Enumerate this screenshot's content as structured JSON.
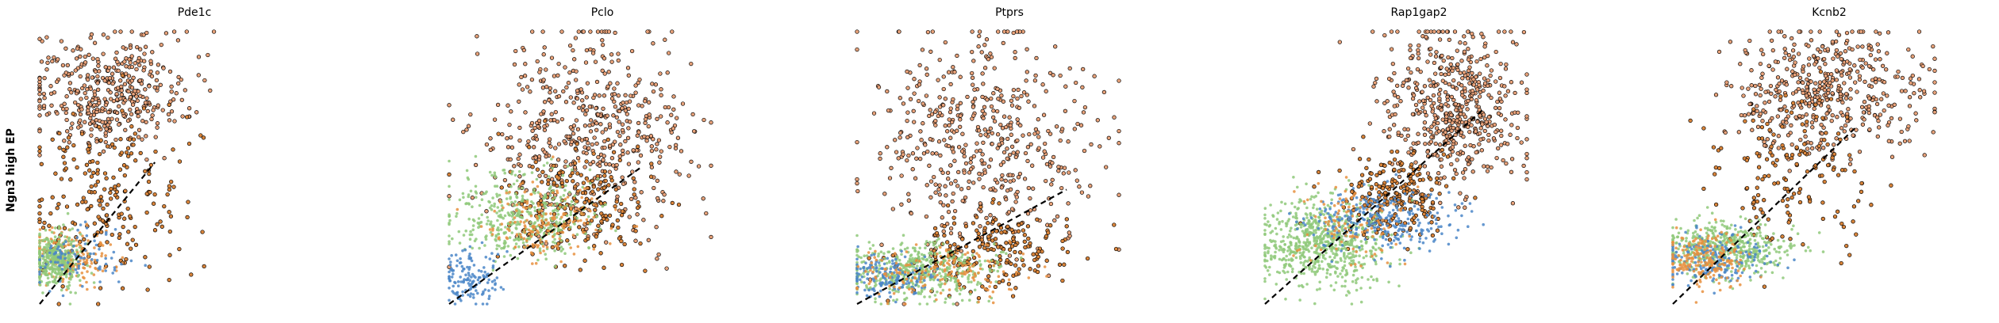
{
  "figure": {
    "row_label": "Ngn3 high EP"
  },
  "chart_data": [
    {
      "type": "scatter",
      "title": "Pde1c",
      "xlabel": "",
      "ylabel": "",
      "xlim": [
        0,
        1
      ],
      "ylim": [
        0,
        1
      ],
      "grid": false,
      "axes_visible": false,
      "fit_line": {
        "x": [
          0.0,
          0.44
        ],
        "y": [
          0.0,
          0.52
        ],
        "style": "dashed",
        "color": "#000000"
      },
      "clusters": [
        {
          "group": "high",
          "color": "#e8a27a",
          "n": 420,
          "cx": 0.26,
          "cy": 0.78,
          "sx": 0.15,
          "sy": 0.1
        },
        {
          "group": "mid",
          "color": "#d9843a",
          "n": 220,
          "cx": 0.25,
          "cy": 0.4,
          "sx": 0.15,
          "sy": 0.16
        },
        {
          "group": "low_orange",
          "color": "#e8913f",
          "n": 220,
          "cx": 0.1,
          "cy": 0.17,
          "sx": 0.08,
          "sy": 0.05
        },
        {
          "group": "low_green",
          "color": "#8fc97a",
          "n": 340,
          "cx": 0.06,
          "cy": 0.16,
          "sx": 0.05,
          "sy": 0.05
        },
        {
          "group": "low_blue",
          "color": "#4a86c8",
          "n": 90,
          "cx": 0.14,
          "cy": 0.16,
          "sx": 0.08,
          "sy": 0.05
        }
      ]
    },
    {
      "type": "scatter",
      "title": "Pclo",
      "xlabel": "",
      "ylabel": "",
      "xlim": [
        0,
        1
      ],
      "ylim": [
        0,
        1
      ],
      "grid": false,
      "axes_visible": false,
      "fit_line": {
        "x": [
          0.0,
          0.73
        ],
        "y": [
          0.0,
          0.5
        ],
        "style": "dashed",
        "color": "#000000"
      },
      "clusters": [
        {
          "group": "high",
          "color": "#e8a27a",
          "n": 520,
          "cx": 0.52,
          "cy": 0.62,
          "sx": 0.2,
          "sy": 0.18
        },
        {
          "group": "mid",
          "color": "#d9843a",
          "n": 200,
          "cx": 0.48,
          "cy": 0.36,
          "sx": 0.14,
          "sy": 0.1
        },
        {
          "group": "low_green",
          "color": "#8fc97a",
          "n": 420,
          "cx": 0.28,
          "cy": 0.32,
          "sx": 0.14,
          "sy": 0.08
        },
        {
          "group": "low_blue",
          "color": "#4a86c8",
          "n": 140,
          "cx": 0.08,
          "cy": 0.1,
          "sx": 0.06,
          "sy": 0.05
        },
        {
          "group": "low_orange",
          "color": "#e8913f",
          "n": 160,
          "cx": 0.35,
          "cy": 0.3,
          "sx": 0.12,
          "sy": 0.07
        }
      ]
    },
    {
      "type": "scatter",
      "title": "Ptprs",
      "xlabel": "",
      "ylabel": "",
      "xlim": [
        0,
        1
      ],
      "ylim": [
        0,
        1
      ],
      "grid": false,
      "axes_visible": false,
      "fit_line": {
        "x": [
          0.0,
          0.8
        ],
        "y": [
          0.0,
          0.42
        ],
        "style": "dashed",
        "color": "#000000"
      },
      "clusters": [
        {
          "group": "high",
          "color": "#e8a27a",
          "n": 520,
          "cx": 0.48,
          "cy": 0.6,
          "sx": 0.2,
          "sy": 0.2
        },
        {
          "group": "mid",
          "color": "#d9843a",
          "n": 200,
          "cx": 0.52,
          "cy": 0.2,
          "sx": 0.16,
          "sy": 0.08
        },
        {
          "group": "low_green",
          "color": "#8fc97a",
          "n": 460,
          "cx": 0.24,
          "cy": 0.12,
          "sx": 0.14,
          "sy": 0.05
        },
        {
          "group": "low_blue",
          "color": "#4a86c8",
          "n": 160,
          "cx": 0.12,
          "cy": 0.1,
          "sx": 0.08,
          "sy": 0.04
        },
        {
          "group": "low_orange",
          "color": "#e8913f",
          "n": 160,
          "cx": 0.3,
          "cy": 0.12,
          "sx": 0.16,
          "sy": 0.05
        }
      ]
    },
    {
      "type": "scatter",
      "title": "Rap1gap2",
      "xlabel": "",
      "ylabel": "",
      "xlim": [
        0,
        1
      ],
      "ylim": [
        0,
        1
      ],
      "grid": false,
      "axes_visible": false,
      "fit_line": {
        "x": [
          0.0,
          0.84
        ],
        "y": [
          0.0,
          0.72
        ],
        "style": "dashed",
        "color": "#000000"
      },
      "clusters": [
        {
          "group": "high",
          "color": "#e8a27a",
          "n": 540,
          "cx": 0.72,
          "cy": 0.72,
          "sx": 0.14,
          "sy": 0.15
        },
        {
          "group": "mid",
          "color": "#d9843a",
          "n": 220,
          "cx": 0.48,
          "cy": 0.4,
          "sx": 0.1,
          "sy": 0.08
        },
        {
          "group": "low_green",
          "color": "#8fc97a",
          "n": 700,
          "cx": 0.22,
          "cy": 0.22,
          "sx": 0.12,
          "sy": 0.08
        },
        {
          "group": "low_blue",
          "color": "#4a86c8",
          "n": 280,
          "cx": 0.44,
          "cy": 0.3,
          "sx": 0.14,
          "sy": 0.06
        },
        {
          "group": "low_orange",
          "color": "#e8913f",
          "n": 100,
          "cx": 0.3,
          "cy": 0.3,
          "sx": 0.1,
          "sy": 0.08
        }
      ]
    },
    {
      "type": "scatter",
      "title": "Kcnb2",
      "xlabel": "",
      "ylabel": "",
      "xlim": [
        0,
        1
      ],
      "ylim": [
        0,
        1
      ],
      "grid": false,
      "axes_visible": false,
      "fit_line": {
        "x": [
          0.0,
          0.7
        ],
        "y": [
          0.0,
          0.65
        ],
        "style": "dashed",
        "color": "#000000"
      },
      "clusters": [
        {
          "group": "high",
          "color": "#e8a27a",
          "n": 480,
          "cx": 0.58,
          "cy": 0.78,
          "sx": 0.17,
          "sy": 0.12
        },
        {
          "group": "mid",
          "color": "#d9843a",
          "n": 160,
          "cx": 0.45,
          "cy": 0.48,
          "sx": 0.14,
          "sy": 0.14
        },
        {
          "group": "low_green",
          "color": "#8fc97a",
          "n": 500,
          "cx": 0.2,
          "cy": 0.2,
          "sx": 0.12,
          "sy": 0.05
        },
        {
          "group": "low_blue",
          "color": "#4a86c8",
          "n": 200,
          "cx": 0.16,
          "cy": 0.16,
          "sx": 0.1,
          "sy": 0.05
        },
        {
          "group": "low_orange",
          "color": "#e8913f",
          "n": 200,
          "cx": 0.12,
          "cy": 0.16,
          "sx": 0.08,
          "sy": 0.05
        }
      ]
    }
  ]
}
